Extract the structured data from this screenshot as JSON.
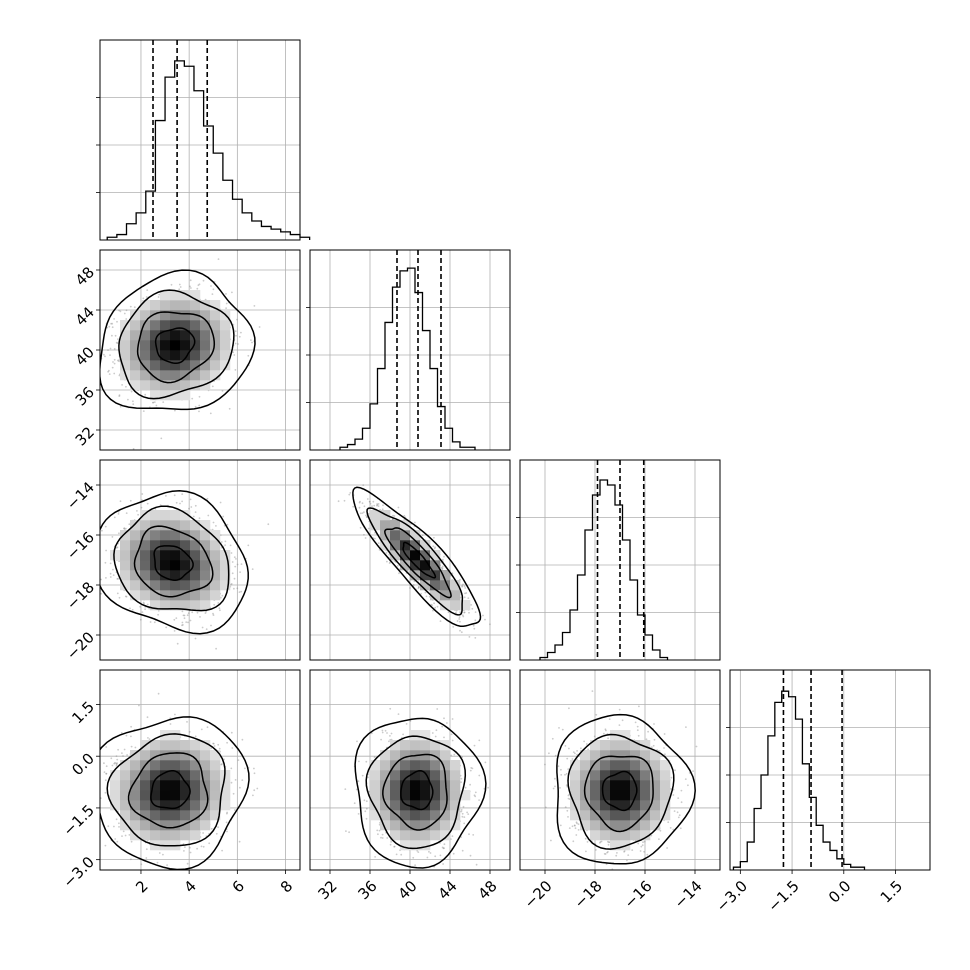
{
  "chart_data": {
    "type": "corner",
    "grid": true,
    "parameters": [
      {
        "index": 0,
        "range": [
          0.3,
          8.6
        ],
        "ticks": [
          2,
          4,
          6,
          8
        ],
        "tick_labels": [
          "2",
          "4",
          "6",
          "8"
        ],
        "quantiles": [
          2.5,
          3.5,
          4.75
        ],
        "histogram": {
          "bin_start": 0.6,
          "bin_width": 0.4,
          "counts": [
            1,
            2,
            6,
            10,
            18,
            44,
            60,
            66,
            64,
            55,
            42,
            32,
            22,
            15,
            10,
            7,
            5,
            4,
            3,
            2,
            1
          ]
        },
        "hist_max": 70
      },
      {
        "index": 1,
        "range": [
          30.0,
          50.0
        ],
        "ticks": [
          32,
          36,
          40,
          44,
          48
        ],
        "tick_labels": [
          "32",
          "36",
          "40",
          "44",
          "48"
        ],
        "quantiles": [
          38.7,
          40.8,
          43.1
        ],
        "histogram": {
          "bin_start": 33.0,
          "bin_width": 0.75,
          "counts": [
            1,
            2,
            4,
            8,
            17,
            30,
            47,
            60,
            66,
            67,
            58,
            44,
            30,
            16,
            8,
            3,
            1,
            1
          ]
        },
        "hist_max": 70
      },
      {
        "index": 2,
        "range": [
          -21.0,
          -13.0
        ],
        "ticks": [
          -20,
          -18,
          -16,
          -14
        ],
        "tick_labels": [
          "−20",
          "−18",
          "−16",
          "−14"
        ],
        "quantiles": [
          -17.9,
          -17.0,
          -16.05
        ],
        "histogram": {
          "bin_start": -20.2,
          "bin_width": 0.3,
          "counts": [
            1,
            3,
            6,
            11,
            20,
            34,
            52,
            66,
            72,
            70,
            62,
            48,
            32,
            18,
            10,
            4,
            1
          ]
        },
        "hist_max": 76
      },
      {
        "index": 3,
        "range": [
          -3.3,
          2.5
        ],
        "ticks": [
          -3.0,
          -1.5,
          0.0,
          1.5
        ],
        "tick_labels": [
          "−3.0",
          "−1.5",
          "0.0",
          "1.5"
        ],
        "quantiles": [
          -1.75,
          -0.95,
          -0.05
        ],
        "histogram": {
          "bin_start": -3.2,
          "bin_width": 0.2,
          "counts": [
            1,
            3,
            10,
            22,
            34,
            48,
            60,
            64,
            62,
            54,
            38,
            26,
            16,
            10,
            7,
            4,
            2,
            1,
            1
          ]
        },
        "hist_max": 68
      }
    ],
    "pairs": [
      {
        "x": 0,
        "y": 1,
        "center": [
          3.4,
          40.5
        ],
        "spread": [
          1.1,
          2.4
        ],
        "correlation": 0.1
      },
      {
        "x": 0,
        "y": 2,
        "center": [
          3.3,
          -17.1
        ],
        "spread": [
          1.1,
          0.95
        ],
        "correlation": -0.15
      },
      {
        "x": 1,
        "y": 2,
        "center": [
          40.8,
          -17.0
        ],
        "spread": [
          2.2,
          0.95
        ],
        "correlation": -0.88
      },
      {
        "x": 0,
        "y": 3,
        "center": [
          3.2,
          -1.0
        ],
        "spread": [
          1.1,
          0.75
        ],
        "correlation": 0.05
      },
      {
        "x": 1,
        "y": 3,
        "center": [
          40.7,
          -1.0
        ],
        "spread": [
          2.2,
          0.75
        ],
        "correlation": 0.0
      },
      {
        "x": 2,
        "y": 3,
        "center": [
          -17.0,
          -1.0
        ],
        "spread": [
          0.95,
          0.75
        ],
        "correlation": 0.0
      }
    ],
    "contour_levels_sigma": [
      0.5,
      1.0,
      1.5,
      2.0
    ],
    "colors": {
      "line": "#000000",
      "grid": "#b0b0b0",
      "points": "#8c8c8c",
      "density": "#000000"
    }
  }
}
